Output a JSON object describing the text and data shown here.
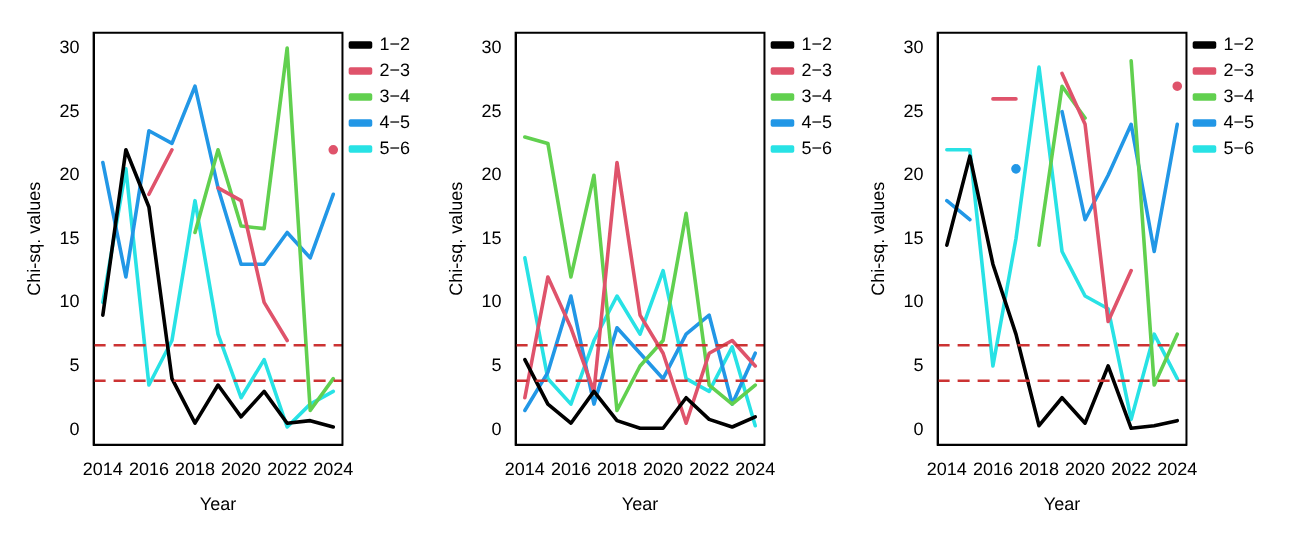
{
  "chart_data": [
    {
      "type": "line",
      "xlabel": "Year",
      "ylabel": "Chi-sq. values",
      "x": [
        2014,
        2015,
        2016,
        2017,
        2018,
        2019,
        2020,
        2021,
        2022,
        2023,
        2024
      ],
      "xlim": [
        2013.6,
        2024.4
      ],
      "xticks": [
        2014,
        2016,
        2018,
        2020,
        2022,
        2024
      ],
      "ylim": [
        -1.2,
        31.2
      ],
      "yticks": [
        0,
        5,
        10,
        15,
        20,
        25,
        30
      ],
      "grid": false,
      "legend": "top right",
      "marker": "none",
      "line_style": "solid",
      "ref_lines": [
        {
          "axis": "y",
          "value": 3.84,
          "color": "#cc3333",
          "line_style": "dashed"
        },
        {
          "axis": "y",
          "value": 6.63,
          "color": "#cc3333",
          "line_style": "dashed"
        }
      ],
      "series": [
        {
          "name": "1−2",
          "color": "#000000",
          "values": [
            9,
            22,
            17.5,
            4,
            0.5,
            3.5,
            1,
            3,
            0.5,
            0.7,
            0.2
          ]
        },
        {
          "name": "2−3",
          "color": "#df536b",
          "values": [
            null,
            null,
            18.5,
            22,
            null,
            19,
            18,
            10,
            7,
            null,
            22
          ]
        },
        {
          "name": "3−4",
          "color": "#61d04f",
          "values": [
            null,
            null,
            null,
            null,
            15.5,
            22,
            16,
            15.8,
            30,
            1.5,
            4
          ]
        },
        {
          "name": "4−5",
          "color": "#2297e6",
          "values": [
            21,
            12,
            23.5,
            22.5,
            27,
            19,
            13,
            13,
            15.5,
            13.5,
            18.5
          ]
        },
        {
          "name": "5−6",
          "color": "#28e2e5",
          "values": [
            10,
            20.5,
            3.5,
            7,
            18,
            7.5,
            2.5,
            5.5,
            0.2,
            2,
            3
          ]
        }
      ]
    },
    {
      "type": "line",
      "xlabel": "Year",
      "ylabel": "Chi-sq. values",
      "x": [
        2014,
        2015,
        2016,
        2017,
        2018,
        2019,
        2020,
        2021,
        2022,
        2023,
        2024
      ],
      "xlim": [
        2013.6,
        2024.4
      ],
      "xticks": [
        2014,
        2016,
        2018,
        2020,
        2022,
        2024
      ],
      "ylim": [
        -1.2,
        31.2
      ],
      "yticks": [
        0,
        5,
        10,
        15,
        20,
        25,
        30
      ],
      "grid": false,
      "legend": "top right",
      "marker": "none",
      "line_style": "solid",
      "ref_lines": [
        {
          "axis": "y",
          "value": 3.84,
          "color": "#cc3333",
          "line_style": "dashed"
        },
        {
          "axis": "y",
          "value": 6.63,
          "color": "#cc3333",
          "line_style": "dashed"
        }
      ],
      "series": [
        {
          "name": "1−2",
          "color": "#000000",
          "values": [
            5.5,
            2,
            0.5,
            3,
            0.7,
            0.1,
            0.1,
            2.5,
            0.8,
            0.2,
            1
          ]
        },
        {
          "name": "2−3",
          "color": "#df536b",
          "values": [
            2.5,
            12,
            8,
            3,
            21,
            9,
            6,
            0.5,
            6,
            7,
            5
          ]
        },
        {
          "name": "3−4",
          "color": "#61d04f",
          "values": [
            23,
            22.5,
            12,
            20,
            1.5,
            5,
            7,
            17,
            3.5,
            2,
            3.5
          ]
        },
        {
          "name": "4−5",
          "color": "#2297e6",
          "values": [
            1.5,
            4.5,
            10.5,
            2,
            8,
            6,
            4,
            7.5,
            9,
            2,
            6
          ]
        },
        {
          "name": "5−6",
          "color": "#28e2e5",
          "values": [
            13.5,
            4,
            2,
            7,
            10.5,
            7.5,
            12.5,
            4,
            3,
            6.5,
            0.3
          ]
        }
      ]
    },
    {
      "type": "line",
      "xlabel": "Year",
      "ylabel": "Chi-sq. values",
      "x": [
        2014,
        2015,
        2016,
        2017,
        2018,
        2019,
        2020,
        2021,
        2022,
        2023,
        2024
      ],
      "xlim": [
        2013.6,
        2024.4
      ],
      "xticks": [
        2014,
        2016,
        2018,
        2020,
        2022,
        2024
      ],
      "ylim": [
        -1.2,
        31.2
      ],
      "yticks": [
        0,
        5,
        10,
        15,
        20,
        25,
        30
      ],
      "grid": false,
      "legend": "top right",
      "marker": "none",
      "line_style": "solid",
      "ref_lines": [
        {
          "axis": "y",
          "value": 3.84,
          "color": "#cc3333",
          "line_style": "dashed"
        },
        {
          "axis": "y",
          "value": 6.63,
          "color": "#cc3333",
          "line_style": "dashed"
        }
      ],
      "series": [
        {
          "name": "1−2",
          "color": "#000000",
          "values": [
            14.5,
            21.5,
            13,
            7.5,
            0.3,
            2.5,
            0.5,
            5,
            0.1,
            0.3,
            0.7
          ]
        },
        {
          "name": "2−3",
          "color": "#df536b",
          "values": [
            null,
            null,
            26,
            26,
            null,
            28,
            24,
            8.5,
            12.5,
            null,
            27
          ]
        },
        {
          "name": "3−4",
          "color": "#61d04f",
          "values": [
            null,
            null,
            null,
            null,
            14.5,
            27,
            24.5,
            null,
            29,
            3.5,
            7.5
          ]
        },
        {
          "name": "4−5",
          "color": "#2297e6",
          "values": [
            18,
            16.5,
            null,
            20.5,
            null,
            25,
            16.5,
            20,
            24,
            14,
            24
          ]
        },
        {
          "name": "5−6",
          "color": "#28e2e5",
          "values": [
            22,
            22,
            5,
            15,
            28.5,
            14,
            10.5,
            9.5,
            0.8,
            7.5,
            4
          ]
        }
      ]
    }
  ]
}
